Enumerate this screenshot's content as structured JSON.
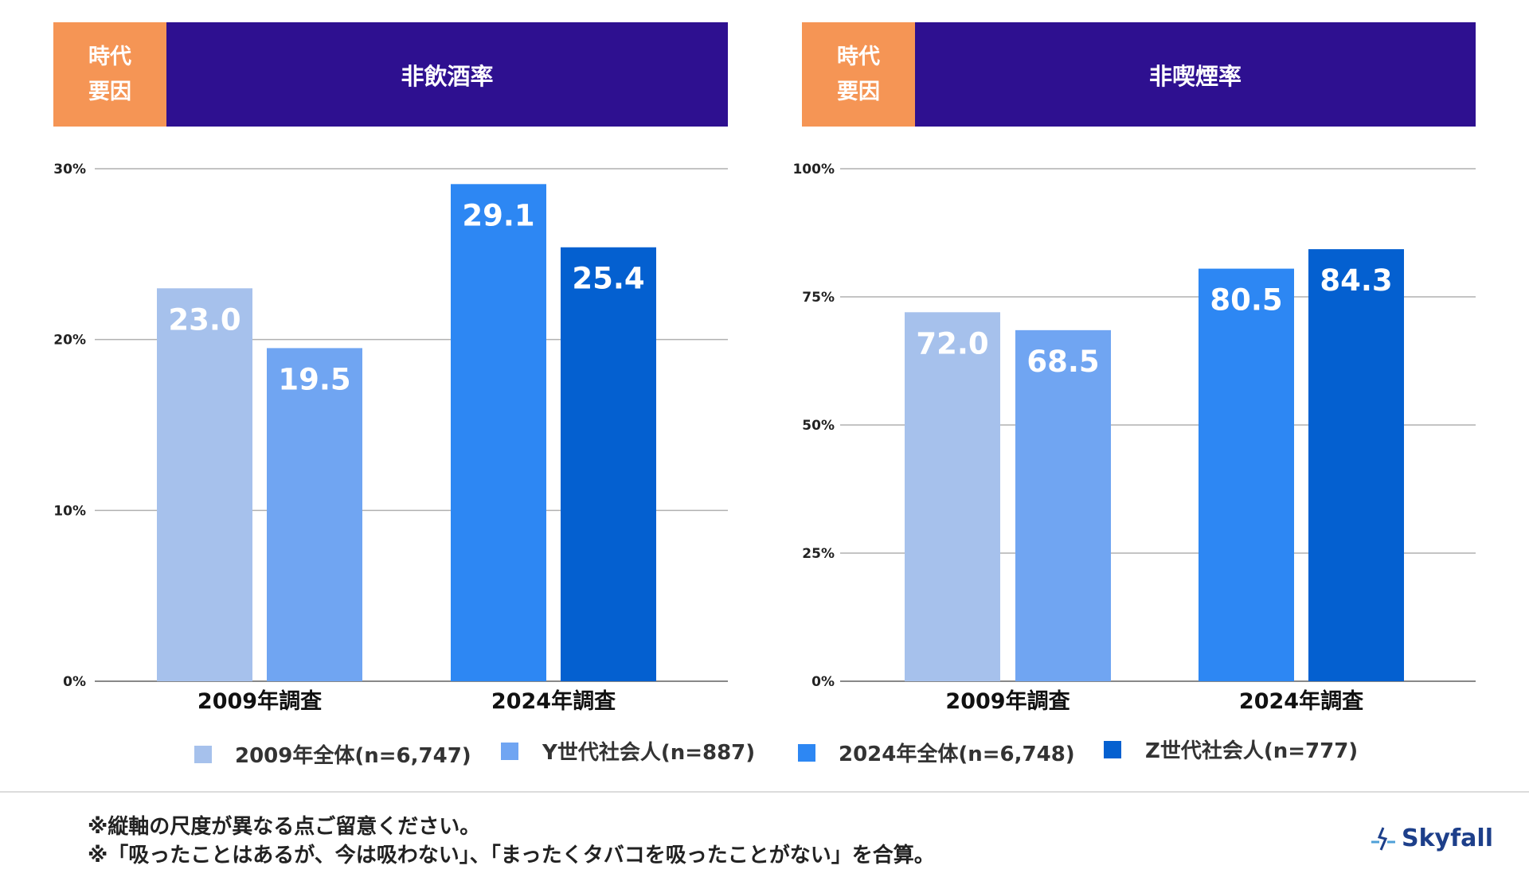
{
  "charts_header": [
    {
      "tag": "時代\n要因",
      "tag_line1": "時代",
      "tag_line2": "要因",
      "title": "非飲酒率"
    },
    {
      "tag": "時代\n要因",
      "tag_line1": "時代",
      "tag_line2": "要因",
      "title": "非喫煙率"
    }
  ],
  "colors": {
    "header_tag": "#f59555",
    "header_title": "#2e1090",
    "series": [
      "#a6c1ec",
      "#70a5f2",
      "#2d87f3",
      "#0460d0"
    ]
  },
  "chart_data": [
    {
      "type": "bar",
      "title": "非飲酒率",
      "categories": [
        "2009年調査",
        "2024年調査"
      ],
      "series_values": [
        [
          23.0,
          19.5
        ],
        [
          29.1,
          25.4
        ]
      ],
      "values_display": [
        "23.0",
        "19.5",
        "29.1",
        "25.4"
      ],
      "ylim": [
        0,
        30
      ],
      "yticks": [
        0,
        10,
        20,
        30
      ],
      "ytick_labels": [
        "0%",
        "10%",
        "20%",
        "30%"
      ],
      "grid": true
    },
    {
      "type": "bar",
      "title": "非喫煙率",
      "categories": [
        "2009年調査",
        "2024年調査"
      ],
      "series_values": [
        [
          72.0,
          68.5
        ],
        [
          80.5,
          84.3
        ]
      ],
      "values_display": [
        "72.0",
        "68.5",
        "80.5",
        "84.3"
      ],
      "ylim": [
        0,
        100
      ],
      "yticks": [
        0,
        25,
        50,
        75,
        100
      ],
      "ytick_labels": [
        "0%",
        "25%",
        "50%",
        "75%",
        "100%"
      ],
      "grid": true
    }
  ],
  "legend": {
    "placement": "bottom",
    "items": [
      "2009年全体(n=6,747)",
      "Y世代社会人(n=887)",
      "2024年全体(n=6,748)",
      "Z世代社会人(n=777)"
    ]
  },
  "notes": [
    "※縦軸の尺度が異なる点ご留意ください。",
    "※「吸ったことはあるが、今は吸わない」、「まったくタバコを吸ったことがない」を合算。"
  ],
  "logo": {
    "text": "Skyfall"
  }
}
